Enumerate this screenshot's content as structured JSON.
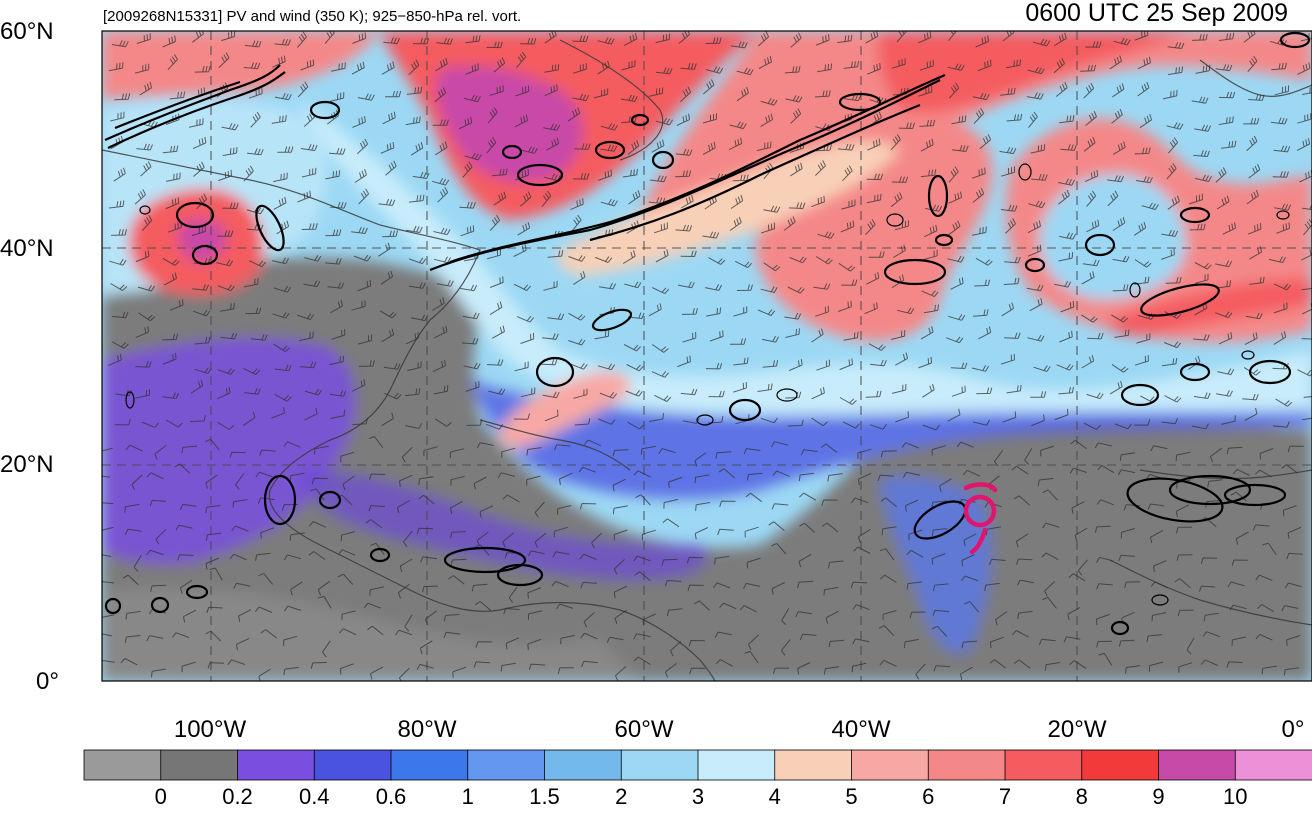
{
  "map": {
    "title_left": "[2009268N15331] PV and wind (350 K); 925−850-hPa rel. vort.",
    "title_right": "0600 UTC 25 Sep 2009",
    "lat_labels": [
      "60°N",
      "40°N",
      "20°N",
      "0°"
    ],
    "lon_labels": [
      "100°W",
      "80°W",
      "60°W",
      "40°W",
      "20°W",
      "0°"
    ],
    "storm_symbol": "tropical-cyclone-icon",
    "storm_color": "#e0156e"
  },
  "colorbar": {
    "labels": [
      "0",
      "0.2",
      "0.4",
      "0.6",
      "1",
      "1.5",
      "2",
      "3",
      "4",
      "5",
      "6",
      "7",
      "8",
      "9",
      "10"
    ],
    "colors": [
      "#9a9a9a",
      "#767676",
      "#7a4fe0",
      "#4a52e0",
      "#3c78ea",
      "#6497f0",
      "#74b9ec",
      "#9cd8f4",
      "#c8ecfb",
      "#f8d0b8",
      "#f8a8a4",
      "#f48888",
      "#f45c60",
      "#f23a3a",
      "#c84aa8",
      "#ec90d8"
    ]
  }
}
